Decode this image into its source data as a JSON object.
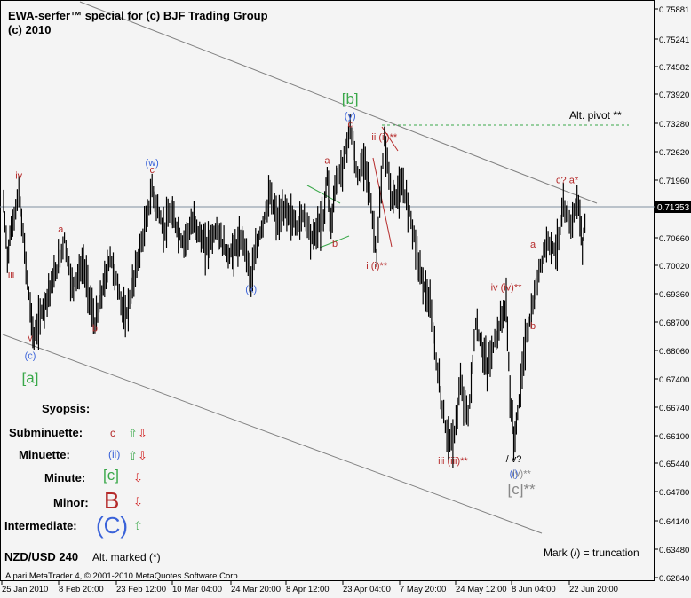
{
  "header": {
    "title_line1": "EWA-serfer™ special for (c) BJF Trading Group",
    "title_line2": "(c) 2010"
  },
  "symbol_label": "NZD/USD 240",
  "alt_marked": "Alt. marked (*)",
  "footer": "Alpari MetaTrader 4, © 2001-2010 MetaQuotes Software Corp.",
  "mark_note": "Mark (/) = truncation",
  "alt_pivot": "Alt. pivot **",
  "colors": {
    "background": "#f4f4f4",
    "candles": "#000000",
    "channel": "#808080",
    "current_price_line": "#7f8fa0",
    "pivot_line": "#3aa84a",
    "red_label": "#b52a2a",
    "blue_label": "#3b63d9",
    "green_label": "#3aa84a",
    "gray_label": "#888888"
  },
  "synopsis": {
    "title": "Syopsis:",
    "rows": [
      {
        "label": "Subminuette:",
        "value": "c",
        "color": "#b52a2a",
        "arrows": "up-down"
      },
      {
        "label": "Minuette:",
        "value": "(ii)",
        "color": "#3b63d9",
        "arrows": "up-down"
      },
      {
        "label": "Minute:",
        "value": "[c]",
        "color": "#3aa84a",
        "arrows": "down"
      },
      {
        "label": "Minor:",
        "value": "B",
        "color": "#b52a2a",
        "arrows": "down"
      },
      {
        "label": "Intermediate:",
        "value": "(C)",
        "color": "#3b63d9",
        "arrows": "up"
      }
    ]
  },
  "wave_labels": [
    {
      "text": "iv",
      "color": "#b52a2a",
      "x": "2010-01-29",
      "y": 0.72
    },
    {
      "text": "iii",
      "color": "#b52a2a",
      "x": "2010-01-27",
      "y": 0.697
    },
    {
      "text": "v",
      "color": "#b52a2a",
      "x": "2010-02-01",
      "y": 0.6822
    },
    {
      "text": "(c)",
      "color": "#3b63d9",
      "x": "2010-02-01",
      "y": 0.678
    },
    {
      "text": "[a]",
      "color": "#3aa84a",
      "x": "2010-02-01",
      "y": 0.6725
    },
    {
      "text": "a",
      "color": "#b52a2a",
      "x": "2010-02-09",
      "y": 0.7075
    },
    {
      "text": "b",
      "color": "#b52a2a",
      "x": "2010-02-18",
      "y": 0.6845
    },
    {
      "text": "c",
      "color": "#b52a2a",
      "x": "2010-03-05",
      "y": 0.7213
    },
    {
      "text": "(w)",
      "color": "#3b63d9",
      "x": "2010-03-05",
      "y": 0.723
    },
    {
      "text": "(x)",
      "color": "#3b63d9",
      "x": "2010-03-31",
      "y": 0.6935
    },
    {
      "text": "a",
      "color": "#b52a2a",
      "x": "2010-04-20",
      "y": 0.7235
    },
    {
      "text": "b",
      "color": "#b52a2a",
      "x": "2010-04-22",
      "y": 0.7042
    },
    {
      "text": "c",
      "color": "#b52a2a",
      "x": "2010-04-26",
      "y": 0.732
    },
    {
      "text": "(y)",
      "color": "#3b63d9",
      "x": "2010-04-26",
      "y": 0.734
    },
    {
      "text": "[b]",
      "color": "#3aa84a",
      "x": "2010-04-26",
      "y": 0.7375
    },
    {
      "text": "ii (ii)**",
      "color": "#b52a2a",
      "x": "2010-05-05",
      "y": 0.729
    },
    {
      "text": "i (i)**",
      "color": "#b52a2a",
      "x": "2010-05-03",
      "y": 0.699
    },
    {
      "text": "iii (iii)**",
      "color": "#b52a2a",
      "x": "2010-05-23",
      "y": 0.6535
    },
    {
      "text": "iv (iv)**",
      "color": "#b52a2a",
      "x": "2010-06-06",
      "y": 0.694
    },
    {
      "text": "/ v?",
      "color": "#000000",
      "x": "2010-06-08",
      "y": 0.654
    },
    {
      "text": "(i)",
      "color": "#3b63d9",
      "x": "2010-06-08",
      "y": 0.6505
    },
    {
      "text": "(v)**",
      "color": "#888888",
      "x": "2010-06-10",
      "y": 0.6505
    },
    {
      "text": "[c]**",
      "color": "#888888",
      "x": "2010-06-10",
      "y": 0.6465
    },
    {
      "text": "a",
      "color": "#b52a2a",
      "x": "2010-06-13",
      "y": 0.704
    },
    {
      "text": "b",
      "color": "#b52a2a",
      "x": "2010-06-13",
      "y": 0.685
    },
    {
      "text": "c? a*",
      "color": "#b52a2a",
      "x": "2010-06-22",
      "y": 0.719
    }
  ],
  "chart_data": {
    "type": "candlestick",
    "timeframe": "240",
    "x_tick_labels": [
      "25 Jan 2010",
      "8 Feb 20:00",
      "23 Feb 12:00",
      "10 Mar 04:00",
      "24 Mar 20:00",
      "8 Apr 12:00",
      "23 Apr 04:00",
      "7 May 20:00",
      "24 May 12:00",
      "8 Jun 04:00",
      "22 Jun 20:00"
    ],
    "y_tick_labels": [
      "0.75881",
      "0.75241",
      "0.74582",
      "0.73920",
      "0.73280",
      "0.72620",
      "0.71960",
      "0.70660",
      "0.70020",
      "0.69360",
      "0.68700",
      "0.68060",
      "0.67400",
      "0.66740",
      "0.66100",
      "0.65440",
      "0.64780",
      "0.64140",
      "0.63480",
      "0.62840"
    ],
    "ylim": [
      0.6275,
      0.7598
    ],
    "current_price": "0.71353",
    "price_path": [
      {
        "x": "2010-01-25",
        "y": 0.714
      },
      {
        "x": "2010-01-26",
        "y": 0.702
      },
      {
        "x": "2010-01-27",
        "y": 0.708
      },
      {
        "x": "2010-01-29",
        "y": 0.7165
      },
      {
        "x": "2010-02-01",
        "y": 0.69
      },
      {
        "x": "2010-02-02",
        "y": 0.6825
      },
      {
        "x": "2010-02-04",
        "y": 0.689
      },
      {
        "x": "2010-02-08",
        "y": 0.699
      },
      {
        "x": "2010-02-10",
        "y": 0.706
      },
      {
        "x": "2010-02-12",
        "y": 0.695
      },
      {
        "x": "2010-02-15",
        "y": 0.7
      },
      {
        "x": "2010-02-18",
        "y": 0.686
      },
      {
        "x": "2010-02-22",
        "y": 0.702
      },
      {
        "x": "2010-02-24",
        "y": 0.695
      },
      {
        "x": "2010-02-26",
        "y": 0.687
      },
      {
        "x": "2010-03-01",
        "y": 0.7
      },
      {
        "x": "2010-03-03",
        "y": 0.708
      },
      {
        "x": "2010-03-05",
        "y": 0.7175
      },
      {
        "x": "2010-03-08",
        "y": 0.708
      },
      {
        "x": "2010-03-10",
        "y": 0.712
      },
      {
        "x": "2010-03-13",
        "y": 0.705
      },
      {
        "x": "2010-03-16",
        "y": 0.71
      },
      {
        "x": "2010-03-19",
        "y": 0.704
      },
      {
        "x": "2010-03-22",
        "y": 0.708
      },
      {
        "x": "2010-03-25",
        "y": 0.702
      },
      {
        "x": "2010-03-29",
        "y": 0.706
      },
      {
        "x": "2010-03-31",
        "y": 0.697
      },
      {
        "x": "2010-04-02",
        "y": 0.706
      },
      {
        "x": "2010-04-05",
        "y": 0.716
      },
      {
        "x": "2010-04-07",
        "y": 0.71
      },
      {
        "x": "2010-04-09",
        "y": 0.713
      },
      {
        "x": "2010-04-12",
        "y": 0.709
      },
      {
        "x": "2010-04-14",
        "y": 0.712
      },
      {
        "x": "2010-04-16",
        "y": 0.706
      },
      {
        "x": "2010-04-19",
        "y": 0.711
      },
      {
        "x": "2010-04-20",
        "y": 0.721
      },
      {
        "x": "2010-04-21",
        "y": 0.709
      },
      {
        "x": "2010-04-22",
        "y": 0.718
      },
      {
        "x": "2010-04-24",
        "y": 0.723
      },
      {
        "x": "2010-04-26",
        "y": 0.732
      },
      {
        "x": "2010-04-28",
        "y": 0.72
      },
      {
        "x": "2010-04-30",
        "y": 0.725
      },
      {
        "x": "2010-05-03",
        "y": 0.702
      },
      {
        "x": "2010-05-05",
        "y": 0.729
      },
      {
        "x": "2010-05-07",
        "y": 0.715
      },
      {
        "x": "2010-05-10",
        "y": 0.718
      },
      {
        "x": "2010-05-12",
        "y": 0.711
      },
      {
        "x": "2010-05-14",
        "y": 0.7
      },
      {
        "x": "2010-05-17",
        "y": 0.69
      },
      {
        "x": "2010-05-19",
        "y": 0.675
      },
      {
        "x": "2010-05-21",
        "y": 0.662
      },
      {
        "x": "2010-05-23",
        "y": 0.658
      },
      {
        "x": "2010-05-25",
        "y": 0.672
      },
      {
        "x": "2010-05-27",
        "y": 0.664
      },
      {
        "x": "2010-05-29",
        "y": 0.686
      },
      {
        "x": "2010-06-01",
        "y": 0.676
      },
      {
        "x": "2010-06-03",
        "y": 0.682
      },
      {
        "x": "2010-06-06",
        "y": 0.691
      },
      {
        "x": "2010-06-07",
        "y": 0.67
      },
      {
        "x": "2010-06-08",
        "y": 0.659
      },
      {
        "x": "2010-06-09",
        "y": 0.665
      },
      {
        "x": "2010-06-11",
        "y": 0.682
      },
      {
        "x": "2010-06-13",
        "y": 0.69
      },
      {
        "x": "2010-06-15",
        "y": 0.7
      },
      {
        "x": "2010-06-17",
        "y": 0.706
      },
      {
        "x": "2010-06-19",
        "y": 0.703
      },
      {
        "x": "2010-06-21",
        "y": 0.713
      },
      {
        "x": "2010-06-23",
        "y": 0.71
      },
      {
        "x": "2010-06-25",
        "y": 0.715
      },
      {
        "x": "2010-06-26",
        "y": 0.703
      },
      {
        "x": "2010-06-27",
        "y": 0.7135
      }
    ]
  }
}
